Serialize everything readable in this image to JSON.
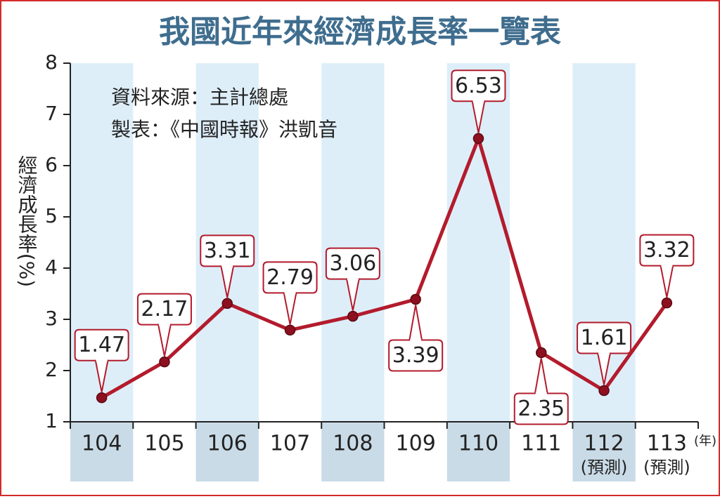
{
  "chart_data": {
    "type": "line",
    "title": "我國近年來經濟成長率一覽表",
    "y_label": "經濟成長率(%)",
    "notes": [
      "資料來源：主計總處",
      "製表：《中國時報》洪凱音"
    ],
    "categories": [
      "104",
      "105",
      "106",
      "107",
      "108",
      "109",
      "110",
      "111",
      "112",
      "113"
    ],
    "category_sublabels": [
      null,
      null,
      null,
      null,
      null,
      null,
      null,
      null,
      "(預測)",
      "(預測)"
    ],
    "x_unit": "(年)",
    "values": [
      1.47,
      2.17,
      3.31,
      2.79,
      3.06,
      3.39,
      6.53,
      2.35,
      1.61,
      3.32
    ],
    "label_positions": [
      "above",
      "above",
      "above",
      "above",
      "above",
      "below",
      "above",
      "below",
      "above",
      "above"
    ],
    "color": "#b31b2c",
    "ylim": [
      1,
      8
    ],
    "yticks": [
      1,
      2,
      3,
      4,
      5,
      6,
      7,
      8
    ]
  }
}
